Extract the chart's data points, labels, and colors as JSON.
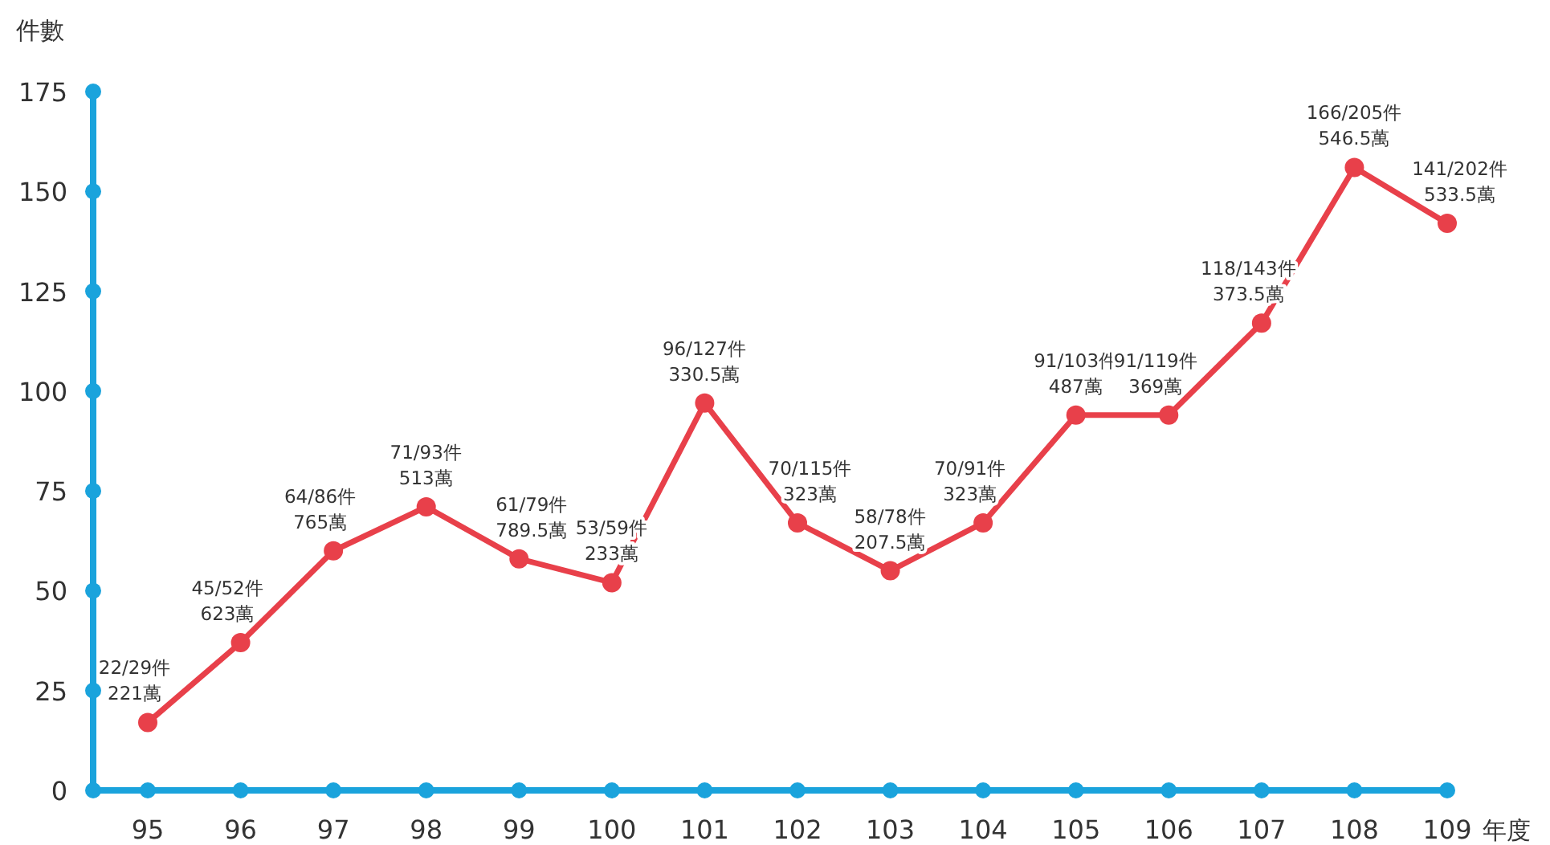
{
  "chart_data": {
    "type": "line",
    "ylabel": "件數",
    "xlabel": "年度",
    "categories": [
      "95",
      "96",
      "97",
      "98",
      "99",
      "100",
      "101",
      "102",
      "103",
      "104",
      "105",
      "106",
      "107",
      "108",
      "109"
    ],
    "series": [
      {
        "color": "#e8404a",
        "values": [
          17,
          37,
          60,
          71,
          58,
          52,
          97,
          67,
          55,
          67,
          94,
          94,
          117,
          156,
          142
        ],
        "value_labels": [
          "22/29件\n221萬",
          "45/52件\n623萬",
          "64/86件\n765萬",
          "71/93件\n513萬",
          "61/79件\n789.5萬",
          "53/59件\n233萬",
          "96/127件\n330.5萬",
          "70/115件\n323萬",
          "58/78件\n207.5萬",
          "70/91件\n323萬",
          "91/103件\n487萬",
          "91/119件\n369萬",
          "118/143件\n373.5萬",
          "166/205件\n546.5萬",
          "141/202件\n533.5萬"
        ]
      }
    ],
    "ylim": [
      0,
      175
    ],
    "yticks": [
      0,
      25,
      50,
      75,
      100,
      125,
      150,
      175
    ],
    "marker": "circle",
    "line_style": "solid",
    "grid": false,
    "legend": false
  }
}
